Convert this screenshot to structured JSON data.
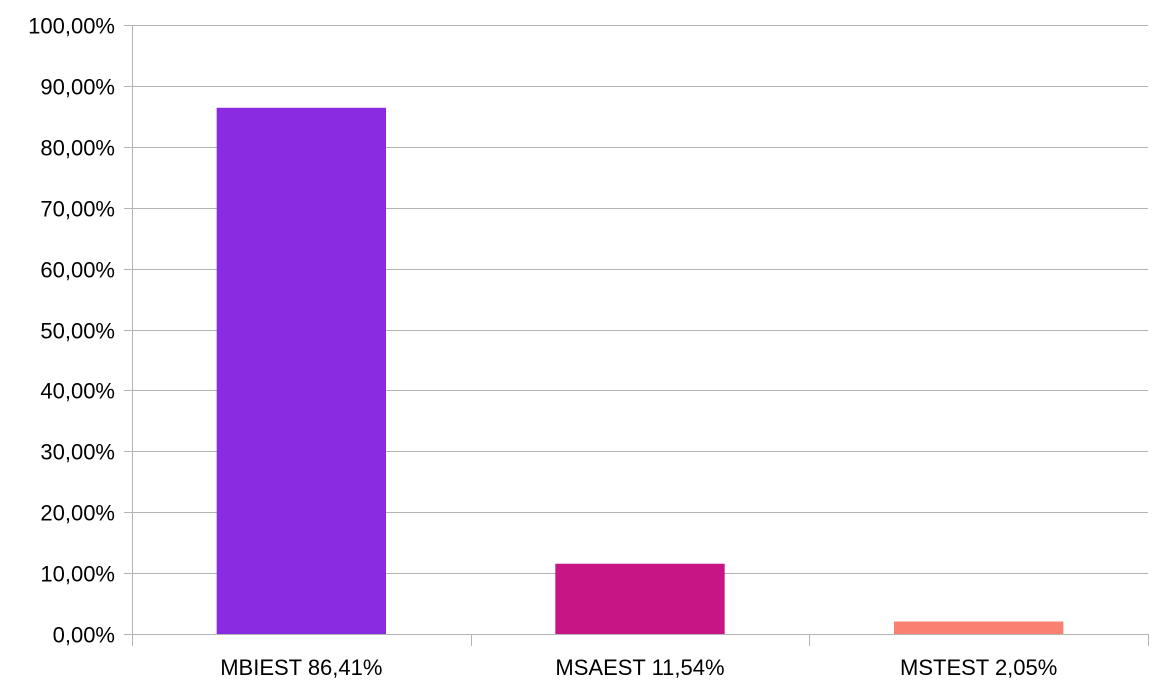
{
  "chart_data": {
    "type": "bar",
    "title": "",
    "xlabel": "",
    "ylabel": "",
    "categories": [
      "MBIEST 86,41%",
      "MSAEST 11,54%",
      "MSTEST 2,05%"
    ],
    "values": [
      86.41,
      11.54,
      2.05
    ],
    "colors": [
      "#8a2be2",
      "#c71585",
      "#fa8072"
    ],
    "ylim": [
      0,
      100
    ],
    "y_ticks": [
      0,
      10,
      20,
      30,
      40,
      50,
      60,
      70,
      80,
      90,
      100
    ],
    "y_tick_labels": [
      "0,00%",
      "10,00%",
      "20,00%",
      "30,00%",
      "40,00%",
      "50,00%",
      "60,00%",
      "70,00%",
      "80,00%",
      "90,00%",
      "100,00%"
    ],
    "grid": true,
    "legend": "none"
  }
}
